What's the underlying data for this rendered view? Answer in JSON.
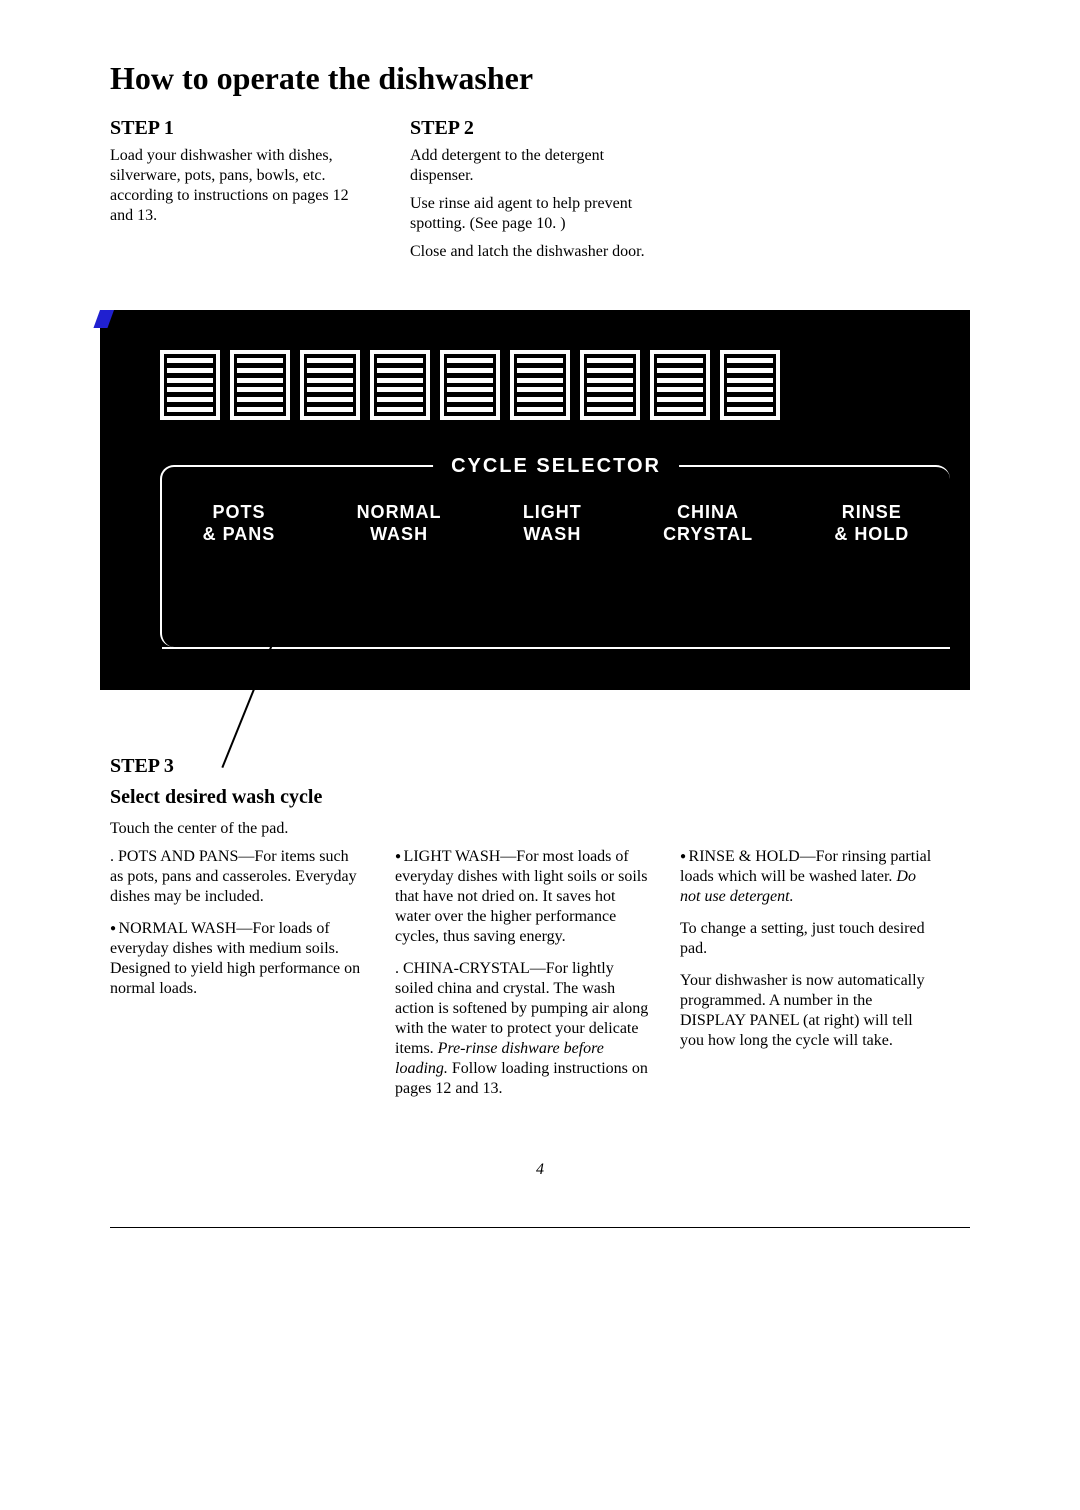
{
  "title": "How to operate the dishwasher",
  "step1": {
    "head": "STEP 1",
    "p1": "Load your dishwasher with dishes, silverware, pots, pans, bowls, etc. according to instructions on pages 12 and 13."
  },
  "step2": {
    "head": "STEP 2",
    "p1": "Add detergent to the detergent dispenser.",
    "p2": "Use rinse aid agent to help prevent spotting. (See page 10. )",
    "p3": "Close and latch the dishwasher door."
  },
  "panel": {
    "selector_title": "CYCLE SELECTOR",
    "cycles": {
      "c1a": "POTS",
      "c1b": "& PANS",
      "c2a": "NORMAL",
      "c2b": "WASH",
      "c3a": "LIGHT",
      "c3b": "WASH",
      "c4a": "CHINA",
      "c4b": "CRYSTAL",
      "c5a": "RINSE",
      "c5b": "& HOLD"
    }
  },
  "step3": {
    "head": "STEP 3",
    "sub": "Select desired wash cycle",
    "intro": "Touch the center of the pad.",
    "col1": {
      "p1": "POTS AND PANS—For items such as pots, pans and casseroles. Everyday dishes may be included.",
      "p2": "NORMAL WASH—For loads of everyday dishes with medium soils. Designed to yield high performance on normal loads."
    },
    "col2": {
      "p1": "LIGHT WASH—For most loads of everyday dishes with light soils or soils that have not dried on. It saves hot water over the higher performance cycles, thus saving energy.",
      "p2a": "CHINA-CRYSTAL—For lightly soiled china and crystal. The wash action is softened by pumping air along with the water to protect your delicate items. ",
      "p2b": "Pre-rinse dishware before loading.",
      "p2c": " Follow loading instructions on pages 12 and 13."
    },
    "col3": {
      "p1a": "RINSE & HOLD—For rinsing partial loads which will be washed later. ",
      "p1b": "Do not use detergent.",
      "p2": "To change a setting, just touch desired pad.",
      "p3": "Your dishwasher is now automatically programmed. A number in the DISPLAY PANEL (at right) will tell you how long the cycle will take."
    }
  },
  "page_number": "4"
}
